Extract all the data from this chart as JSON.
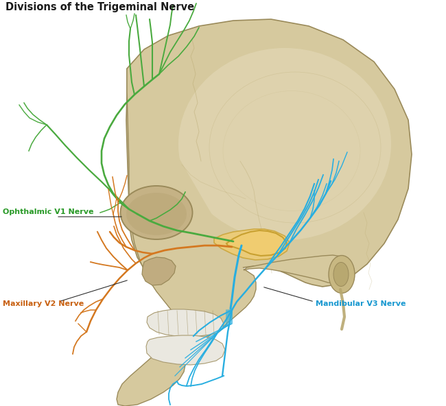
{
  "title": "Divisions of the Trigeminal Nerve",
  "title_fontsize": 10.5,
  "title_color": "#1a1a1a",
  "bg_color": "#ffffff",
  "skull_fill": "#d6c99e",
  "skull_light": "#e8dfc0",
  "skull_dark": "#b8a870",
  "skull_edge": "#9a8a5a",
  "skull_inner": "#c8b988",
  "v1_color": "#4aaa3f",
  "v2_color": "#d47820",
  "v3_color": "#28aee0",
  "ganglion_color": "#f0cc70",
  "ganglion_edge": "#c8a030",
  "label_v1": "Ophthalmic V1 Nerve",
  "label_v2": "Maxillary V2 Nerve",
  "label_v3": "Mandibular V3 Nerve",
  "label_v1_color": "#2a9a28",
  "label_v2_color": "#c86010",
  "label_v3_color": "#1898d0",
  "label_fontsize": 8.0,
  "figsize": [
    6.5,
    5.92
  ],
  "dpi": 100
}
